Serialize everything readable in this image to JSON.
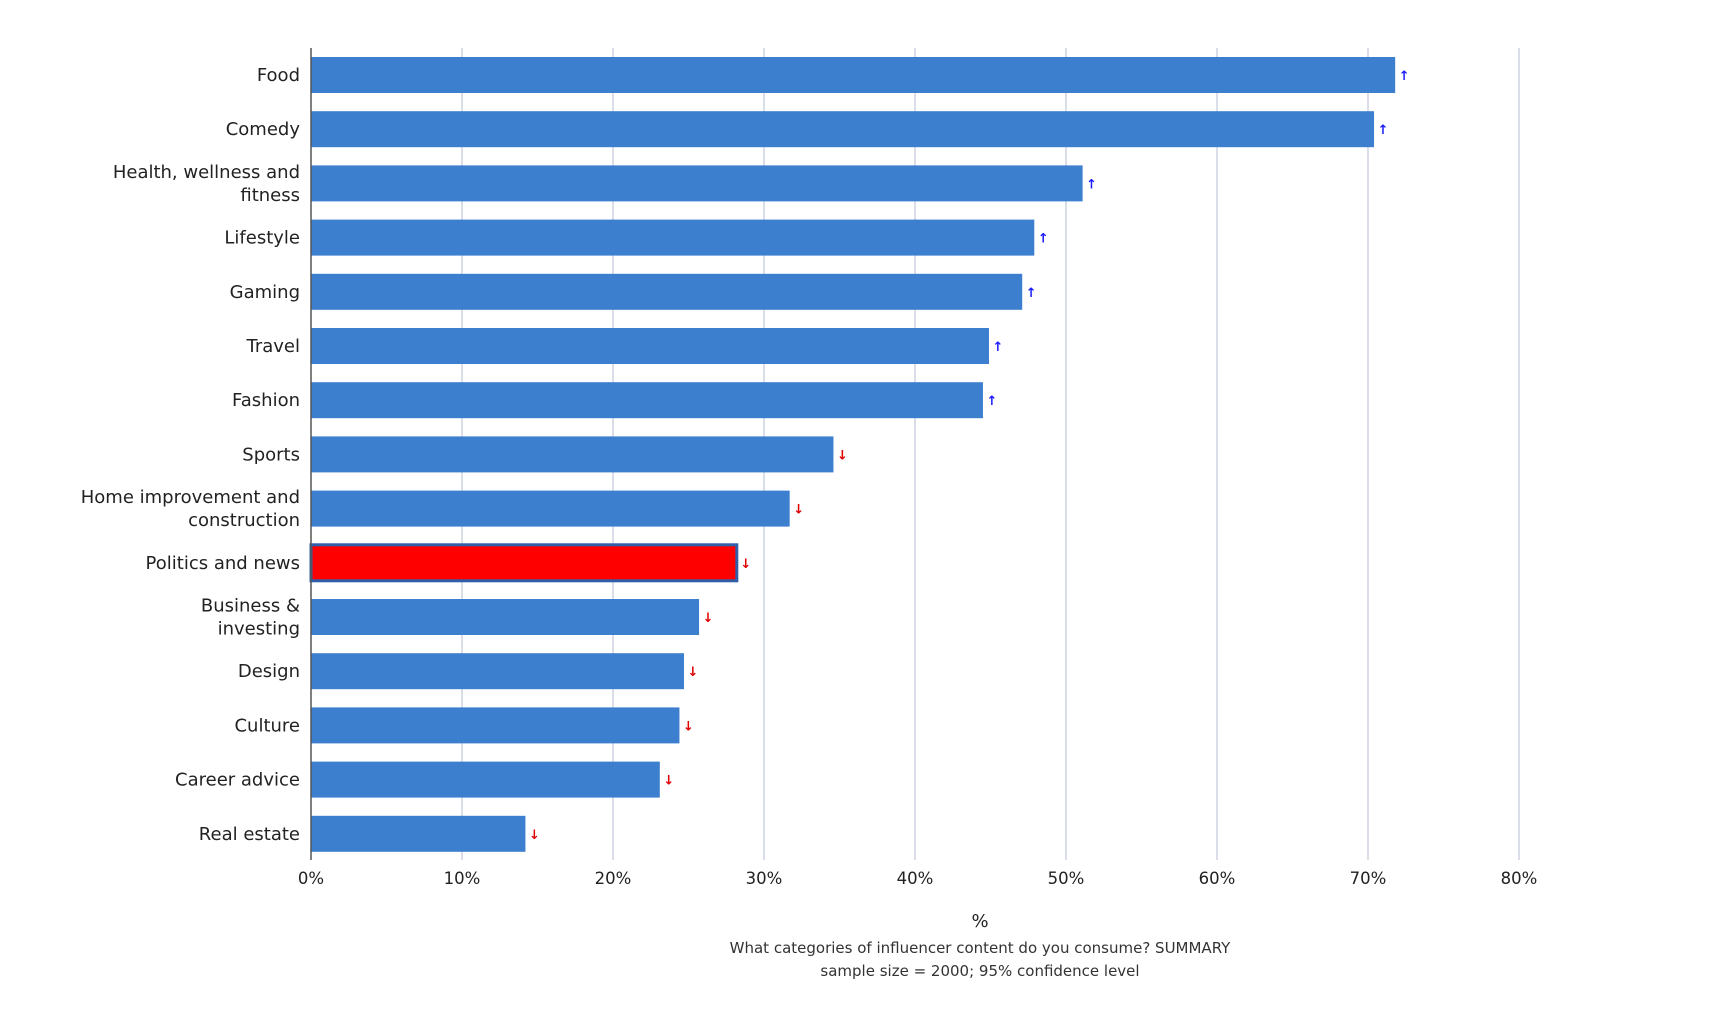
{
  "chart_data": {
    "type": "bar",
    "orientation": "horizontal",
    "categories": [
      "Food",
      "Comedy",
      "Health, wellness and fitness",
      "Lifestyle",
      "Gaming",
      "Travel",
      "Fashion",
      "Sports",
      "Home improvement and construction",
      "Politics and news",
      "Business & investing",
      "Design",
      "Culture",
      "Career advice",
      "Real estate"
    ],
    "label_lines": [
      [
        "Food"
      ],
      [
        "Comedy"
      ],
      [
        "Health, wellness and",
        "fitness"
      ],
      [
        "Lifestyle"
      ],
      [
        "Gaming"
      ],
      [
        "Travel"
      ],
      [
        "Fashion"
      ],
      [
        "Sports"
      ],
      [
        "Home improvement and",
        "construction"
      ],
      [
        "Politics and news"
      ],
      [
        "Business &",
        "investing"
      ],
      [
        "Design"
      ],
      [
        "Culture"
      ],
      [
        "Career advice"
      ],
      [
        "Real estate"
      ]
    ],
    "values": [
      71.8,
      70.4,
      51.1,
      47.9,
      47.1,
      44.9,
      44.5,
      34.6,
      31.7,
      28.2,
      25.7,
      24.7,
      24.4,
      23.1,
      14.2
    ],
    "significance": [
      "up",
      "up",
      "up",
      "up",
      "up",
      "up",
      "up",
      "down",
      "down",
      "down",
      "down",
      "down",
      "down",
      "down",
      "down"
    ],
    "arrow_symbols": {
      "up": "↑",
      "down": "↓"
    },
    "highlighted_category": "Politics and news",
    "xlim": [
      0,
      80
    ],
    "xticks": [
      0,
      10,
      20,
      30,
      40,
      50,
      60,
      70,
      80
    ],
    "tick_suffix": "%",
    "xlabel": "%",
    "caption_lines": [
      "What categories of influencer content do you consume? SUMMARY",
      "sample size = 2000; 95% confidence level"
    ],
    "grid": true,
    "legend": "none"
  },
  "colors": {
    "bar": "#3d7fcf",
    "highlight_bar": "#ff0000",
    "highlight_border": "#2f5fa8",
    "grid": "#cdd3e0",
    "axis": "#555555",
    "arrow_up": "#1a1aff",
    "arrow_down": "#e00000"
  }
}
